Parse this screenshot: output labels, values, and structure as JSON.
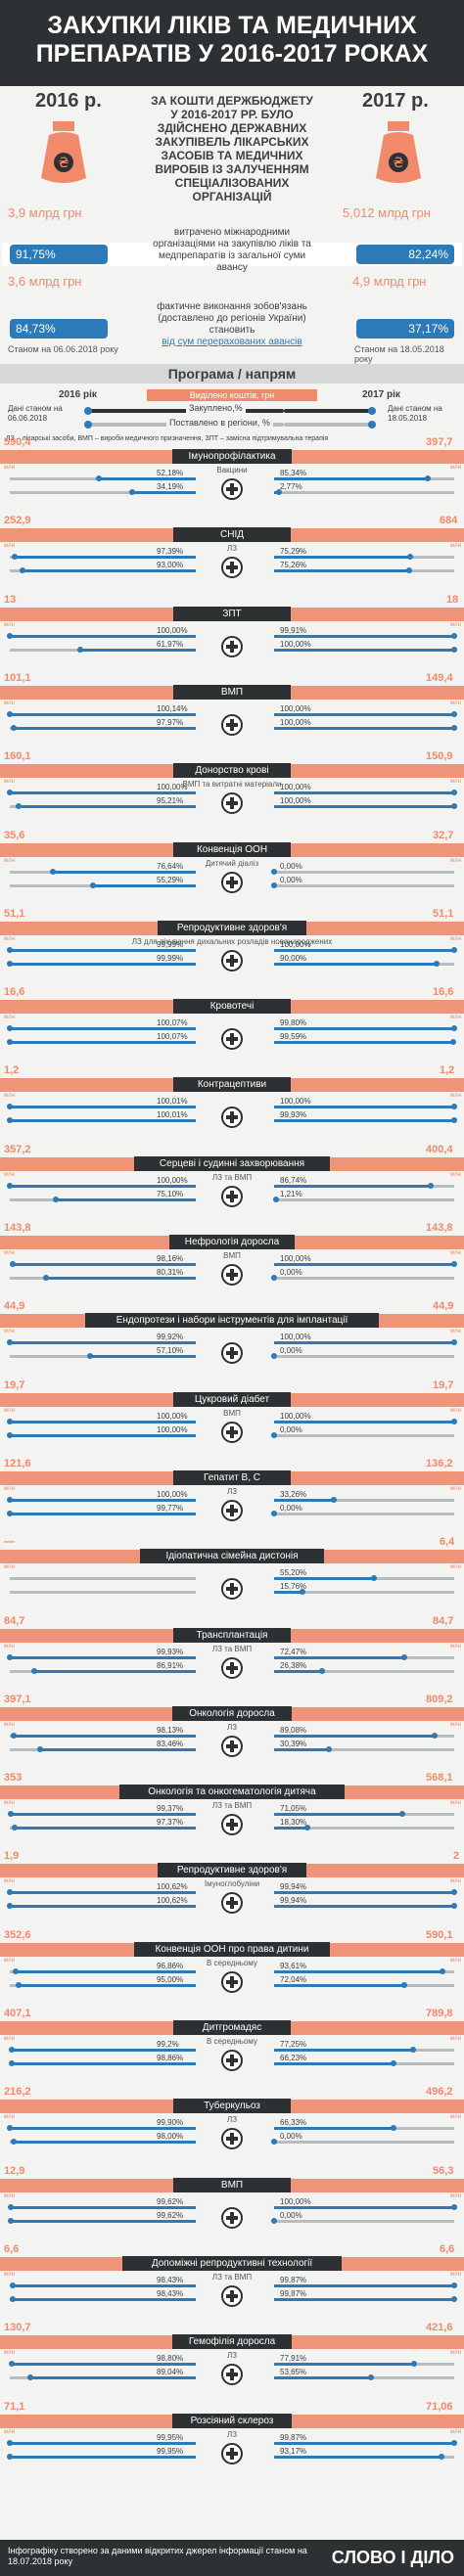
{
  "title": "ЗАКУПКИ ЛІКІВ ТА МЕДИЧНИХ ПРЕПАРАТІВ У 2016-2017 РОКАХ",
  "top": {
    "year_left": "2016 р.",
    "year_right": "2017 р.",
    "center_text": "ЗА КОШТИ ДЕРЖБЮДЖЕТУ У 2016-2017 РР. БУЛО ЗДІЙСНЕНО ДЕРЖАВНИХ ЗАКУПІВЕЛЬ ЛІКАРСЬКИХ ЗАСОБІВ ТА МЕДИЧНИХ ВИРОБІВ ІЗ ЗАЛУЧЕННЯМ СПЕЦІАЛІЗОВАНИХ ОРГАНІЗАЦІЙ",
    "amount_left": "3,9 млрд грн",
    "amount_right": "5,012 млрд грн",
    "spent_pct_left": "91,75%",
    "spent_pct_right": "82,24%",
    "spent_text": "витрачено міжнародними організаціями на закупівлю ліків та медпрепаратів із загальної суми авансу",
    "spent_amount_left": "3,6 млрд грн",
    "spent_amount_right": "4,9 млрд грн",
    "fact_pct_left": "84,73%",
    "fact_pct_right": "37,17%",
    "fact_text_1": "фактичне виконання зобов'язань (доставлено до регіонів України) становить",
    "fact_text_2": "від сум перерахованих авансів",
    "date_left": "Станом на 06.06.2018 року",
    "date_right": "Станом на 18.05.2018 року"
  },
  "section": {
    "title": "Програма / напрям",
    "year_left": "2016 рік",
    "year_right": "2017 рік",
    "legend_money": "Виділено коштів, грн",
    "legend_bought": "Закуплено,%",
    "legend_delivered": "Поставлено в регіони, %",
    "date_left": "Дані станом на 06.06.2018",
    "date_right": "Дані станом на 18.05.2018",
    "abbr": "ЛЗ – лікарські засоби, ВМП – вироби медичного призначення, ЗПТ – замісна підтримувальна терапія",
    "mln": "млн"
  },
  "chart_data": {
    "type": "table",
    "title": "Програма / напрям",
    "columns": [
      "Програма / напрям",
      "Підпис",
      "2016 виділено, млн грн",
      "2016 закуплено, %",
      "2016 поставлено, %",
      "2017 виділено, млн грн",
      "2017 закуплено, %",
      "2017 поставлено, %"
    ],
    "rows": [
      {
        "name": "Імунопрофілактика",
        "sub": "Вакцини",
        "v16": "590,4",
        "b16": "52,18%",
        "d16": "34,19%",
        "v17": "397,7",
        "b17": "85,34%",
        "d17": "2,77%"
      },
      {
        "name": "СНІД",
        "sub": "ЛЗ",
        "v16": "252,9",
        "b16": "97,39%",
        "d16": "93,00%",
        "v17": "684",
        "b17": "75,29%",
        "d17": "75,26%"
      },
      {
        "name": "ЗПТ",
        "sub": "",
        "v16": "13",
        "b16": "100,00%",
        "d16": "61,97%",
        "v17": "18",
        "b17": "99,91%",
        "d17": "100,00%"
      },
      {
        "name": "ВМП",
        "sub": "",
        "v16": "101,1",
        "b16": "100,14%",
        "d16": "97,97%",
        "v17": "149,4",
        "b17": "100,00%",
        "d17": "100,00%"
      },
      {
        "name": "Донорство крові",
        "sub": "ВМП та витратні матеріали",
        "v16": "160,1",
        "b16": "100,00%",
        "d16": "95,21%",
        "v17": "150,9",
        "b17": "100,00%",
        "d17": "100,00%"
      },
      {
        "name": "Конвенція ООН",
        "sub": "Дитячий діаліз",
        "v16": "35,6",
        "b16": "76,64%",
        "d16": "55,29%",
        "v17": "32,7",
        "b17": "0,00%",
        "d17": "0,00%"
      },
      {
        "name": "Репродуктивне здоров'я",
        "sub": "ЛЗ для лікування дихальних розладів новонароджених",
        "v16": "51,1",
        "b16": "99,99%",
        "d16": "99,99%",
        "v17": "51,1",
        "b17": "100,00%",
        "d17": "90,00%"
      },
      {
        "name": "Кровотечі",
        "sub": "",
        "v16": "16,6",
        "b16": "100,07%",
        "d16": "100,07%",
        "v17": "16,6",
        "b17": "99,80%",
        "d17": "99,59%"
      },
      {
        "name": "Контрацептиви",
        "sub": "",
        "v16": "1,2",
        "b16": "100,01%",
        "d16": "100,01%",
        "v17": "1,2",
        "b17": "100,00%",
        "d17": "99,93%"
      },
      {
        "name": "Серцеві і судинні захворювання",
        "sub": "ЛЗ та ВМП",
        "v16": "357,2",
        "b16": "100,00%",
        "d16": "75,10%",
        "v17": "400,4",
        "b17": "86,74%",
        "d17": "1,21%"
      },
      {
        "name": "Нефрологія доросла",
        "sub": "ВМП",
        "v16": "143,8",
        "b16": "98,16%",
        "d16": "80,31%",
        "v17": "143,8",
        "b17": "100,00%",
        "d17": "0,00%"
      },
      {
        "name": "Ендопротези і набори інструментів для імплантації",
        "sub": "",
        "v16": "44,9",
        "b16": "99,92%",
        "d16": "57,10%",
        "v17": "44,9",
        "b17": "100,00%",
        "d17": "0,00%"
      },
      {
        "name": "Цукровий діабет",
        "sub": "ВМП",
        "v16": "19,7",
        "b16": "100,00%",
        "d16": "100,00%",
        "v17": "19,7",
        "b17": "100,00%",
        "d17": "0,00%"
      },
      {
        "name": "Гепатит В, С",
        "sub": "ЛЗ",
        "v16": "121,6",
        "b16": "100,00%",
        "d16": "99,77%",
        "v17": "136,2",
        "b17": "33,26%",
        "d17": "0,00%"
      },
      {
        "name": "Ідіопатична сімейна дистонія",
        "sub": "",
        "v16": "—",
        "b16": "",
        "d16": "",
        "v17": "6,4",
        "b17": "55,20%",
        "d17": "15,76%"
      },
      {
        "name": "Трансплантація",
        "sub": "ЛЗ та ВМП",
        "v16": "84,7",
        "b16": "99,93%",
        "d16": "86,91%",
        "v17": "84,7",
        "b17": "72,47%",
        "d17": "26,38%"
      },
      {
        "name": "Онкологія доросла",
        "sub": "ЛЗ",
        "v16": "397,1",
        "b16": "98,13%",
        "d16": "83,46%",
        "v17": "809,2",
        "b17": "89,08%",
        "d17": "30,39%"
      },
      {
        "name": "Онкологія та онкогематологія дитяча",
        "sub": "ЛЗ та ВМП",
        "v16": "353",
        "b16": "99,37%",
        "d16": "97,37%",
        "v17": "568,1",
        "b17": "71,05%",
        "d17": "18,30%"
      },
      {
        "name": "Репродуктивне здоров'я",
        "sub": "Імуноглобуліни",
        "v16": "1,9",
        "b16": "100,62%",
        "d16": "100,62%",
        "v17": "2",
        "b17": "99,94%",
        "d17": "99,94%"
      },
      {
        "name": "Конвенція ООН про права дитини",
        "sub": "В середньому",
        "v16": "352,6",
        "b16": "96,86%",
        "d16": "95,00%",
        "v17": "590,1",
        "b17": "93,61%",
        "d17": "72,04%"
      },
      {
        "name": "Дитгромадяс",
        "sub": "В середньому",
        "v16": "407,1",
        "b16": "99,2%",
        "d16": "98,86%",
        "v17": "789,8",
        "b17": "77,25%",
        "d17": "66,23%"
      },
      {
        "name": "Туберкульоз",
        "sub": "ЛЗ",
        "v16": "216,2",
        "b16": "99,90%",
        "d16": "98,00%",
        "v17": "496,2",
        "b17": "66,33%",
        "d17": "0,00%"
      },
      {
        "name": "ВМП",
        "sub": "",
        "v16": "12,9",
        "b16": "99,62%",
        "d16": "99,62%",
        "v17": "56,3",
        "b17": "100,00%",
        "d17": "0,00%"
      },
      {
        "name": "Допоміжні репродуктивні технології",
        "sub": "ЛЗ та ВМП",
        "v16": "6,6",
        "b16": "98,43%",
        "d16": "98,43%",
        "v17": "6,6",
        "b17": "99,87%",
        "d17": "99,87%"
      },
      {
        "name": "Гемофілія доросла",
        "sub": "ЛЗ",
        "v16": "130,7",
        "b16": "98,80%",
        "d16": "89,04%",
        "v17": "421,6",
        "b17": "77,91%",
        "d17": "53,65%"
      },
      {
        "name": "Розсіяний склероз",
        "sub": "ЛЗ",
        "v16": "71,1",
        "b16": "99,95%",
        "d16": "99,95%",
        "v17": "71,06",
        "b17": "99,87%",
        "d17": "93,17%"
      }
    ]
  },
  "footer": {
    "note": "Інфографіку створено за даними відкритих джерел інформації станом на 18.07.2018 року",
    "logo": "СЛОВО І ДІЛО"
  },
  "colors": {
    "dark": "#2d3133",
    "orange": "#f08a6b",
    "blue": "#2d7ab8"
  }
}
